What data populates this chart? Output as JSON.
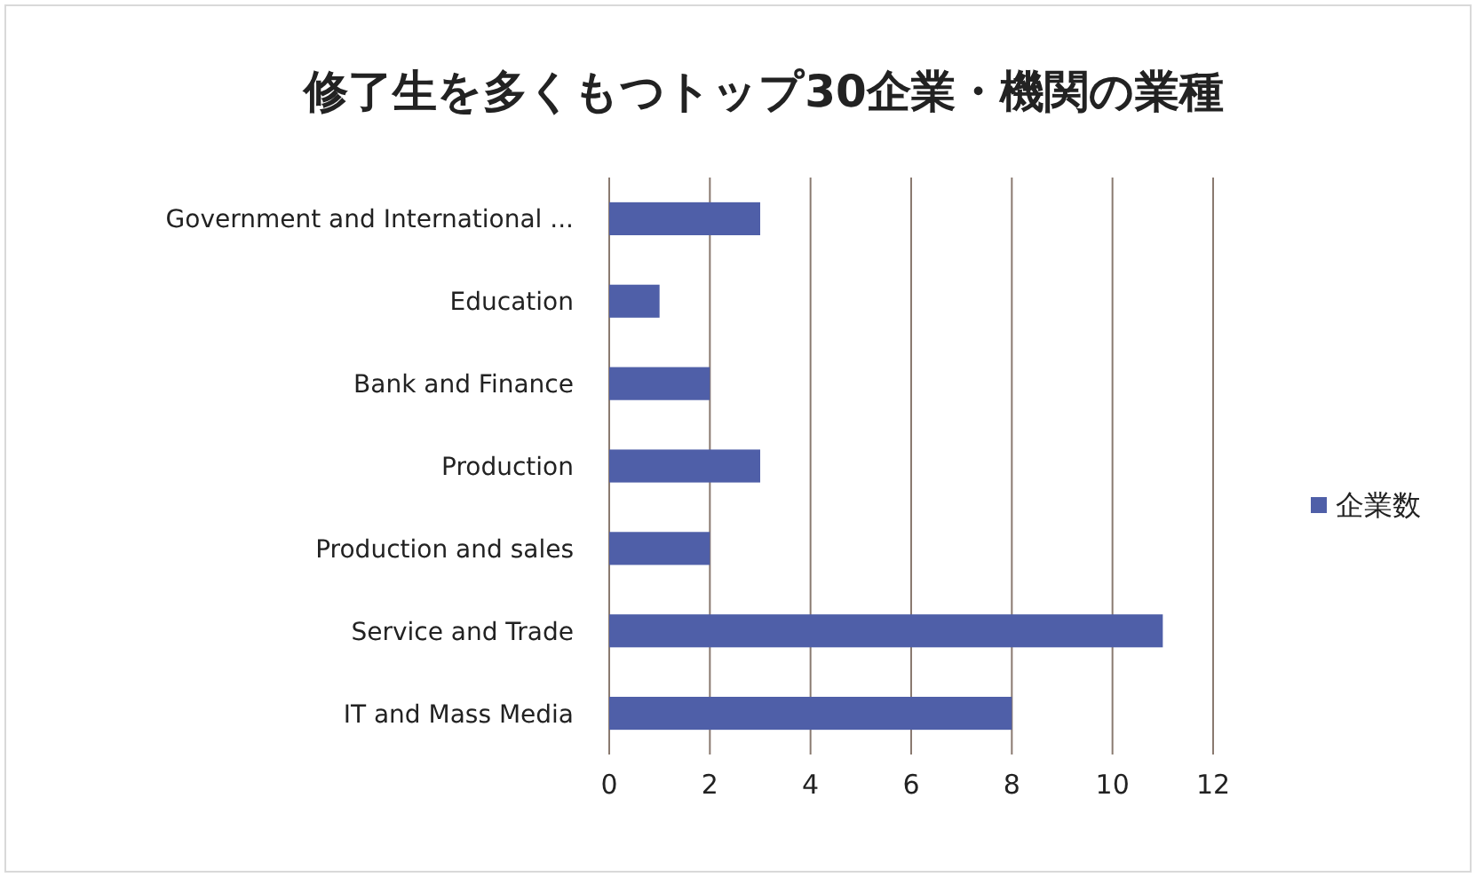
{
  "chart_data": {
    "type": "bar",
    "orientation": "horizontal",
    "title": "修了生を多くもつトップ30企業・機関の業種",
    "categories": [
      "Government and International ...",
      "Education",
      "Bank and Finance",
      "Production",
      "Production and sales",
      "Service and Trade",
      "IT and Mass  Media"
    ],
    "series": [
      {
        "name": "企業数",
        "color": "#4f5fa8",
        "values": [
          3,
          1,
          2,
          3,
          2,
          11,
          8
        ]
      }
    ],
    "xlim": [
      0,
      12
    ],
    "xticks": [
      0,
      2,
      4,
      6,
      8,
      10,
      12
    ],
    "grid": "x",
    "legend": "right"
  }
}
